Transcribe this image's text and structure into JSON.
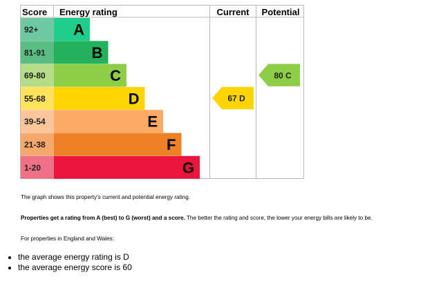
{
  "chart_data": {
    "type": "bar",
    "headers": {
      "score": "Score",
      "rating": "Energy rating",
      "current": "Current",
      "potential": "Potential"
    },
    "bands": [
      {
        "label": "A",
        "range": "92+",
        "color": "#1fce8b",
        "range_color": "#6dc9a0"
      },
      {
        "label": "B",
        "range": "81-91",
        "color": "#22b25e",
        "range_color": "#5abe84"
      },
      {
        "label": "C",
        "range": "69-80",
        "color": "#8dce46",
        "range_color": "#b3dd86"
      },
      {
        "label": "D",
        "range": "55-68",
        "color": "#ffd500",
        "range_color": "#ffe35d"
      },
      {
        "label": "E",
        "range": "39-54",
        "color": "#fcaa65",
        "range_color": "#fdc69a"
      },
      {
        "label": "F",
        "range": "21-38",
        "color": "#ef8023",
        "range_color": "#f4a86a"
      },
      {
        "label": "G",
        "range": "1-20",
        "color": "#e9153b",
        "range_color": "#f07185"
      }
    ],
    "current": {
      "score": 67,
      "band": "D",
      "label": "67  D",
      "color": "#ffd500"
    },
    "potential": {
      "score": 80,
      "band": "C",
      "label": "80  C",
      "color": "#8dce46"
    }
  },
  "notes": {
    "graph_text": "The graph shows this property's current and potential energy rating.",
    "rating_bold": "Properties get a rating from A (best) to G (worst) and a score.",
    "rating_rest": " The better the rating and score, the lower your energy bills are likely to be.",
    "england_wales": "For properties in England and Wales:",
    "bullet_1": "the average energy rating is D",
    "bullet_2": "the average energy score is 60"
  }
}
